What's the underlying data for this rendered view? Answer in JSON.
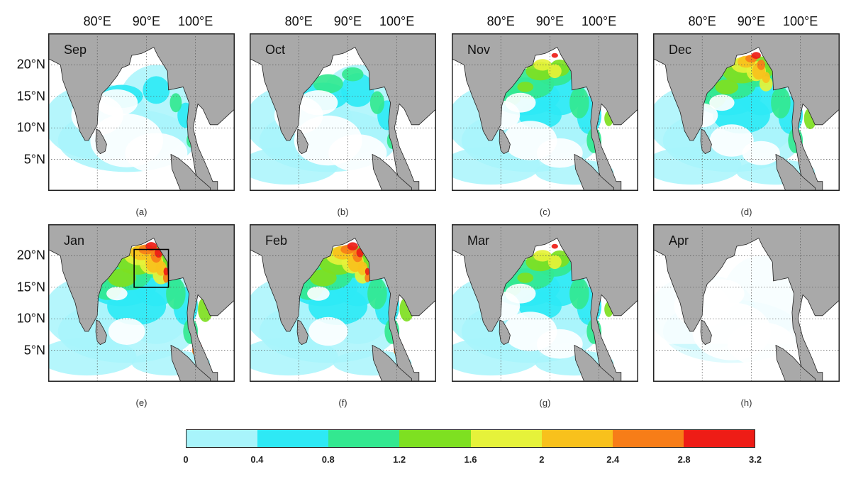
{
  "figure": {
    "lon_labels": [
      "80°E",
      "90°E",
      "100°E"
    ],
    "lat_labels": [
      "20°N",
      "15°N",
      "10°N",
      "5°N"
    ],
    "panels": [
      {
        "month": "Sep",
        "label": "(a)",
        "intensity": 0.2
      },
      {
        "month": "Oct",
        "label": "(b)",
        "intensity": 0.3
      },
      {
        "month": "Nov",
        "label": "(c)",
        "intensity": 0.6
      },
      {
        "month": "Dec",
        "label": "(d)",
        "intensity": 0.8
      },
      {
        "month": "Jan",
        "label": "(e)",
        "intensity": 0.95
      },
      {
        "month": "Feb",
        "label": "(f)",
        "intensity": 0.9
      },
      {
        "month": "Mar",
        "label": "(g)",
        "intensity": 0.6
      },
      {
        "month": "Apr",
        "label": "(h)",
        "intensity": 0.08
      }
    ],
    "colorbar": {
      "ticks": [
        "0",
        "0.4",
        "0.8",
        "1.2",
        "1.6",
        "2",
        "2.4",
        "2.8",
        "3.2"
      ],
      "colors": [
        "#a8f4fb",
        "#2ee9f5",
        "#33e890",
        "#7ee021",
        "#e6f23a",
        "#f8c11c",
        "#f77d18",
        "#ee1c16"
      ]
    },
    "colors": {
      "land": "#a9a9a9",
      "ocean_low": "#ffffff",
      "coast": "#222222",
      "box": "#000000"
    }
  }
}
